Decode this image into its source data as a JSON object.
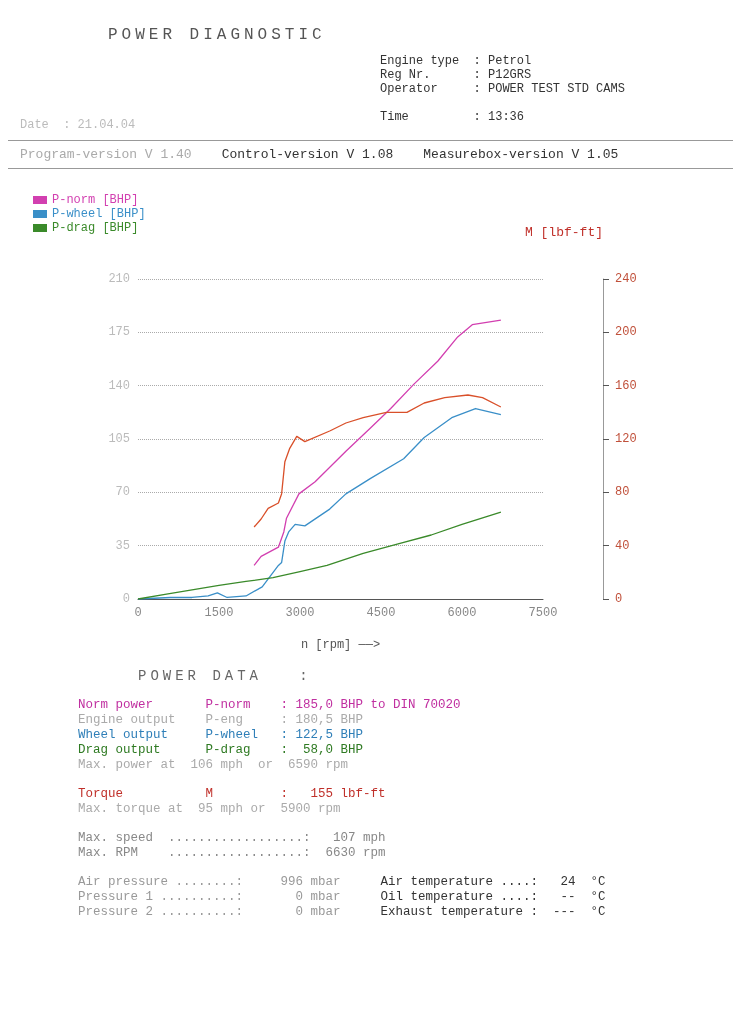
{
  "chart_data": {
    "type": "line",
    "title": "POWER DIAGNOSTIC",
    "xlabel": "n [rpm] ——>",
    "y2label": "M [lbf-ft]",
    "annotations": [
      "Engine type  : Petrol",
      "Reg Nr.      : P12GRS",
      "Operator     : POWER TEST STD CAMS",
      "Date  : 21.04.04",
      "Time         : 13:36",
      "Program-version V 1.40",
      "Control-version V 1.08",
      "Measurebox-version V 1.05",
      "POWER DATA   :",
      "Norm power       P-norm    : 185,0 BHP to DIN 70020",
      "Engine output    P-eng     : 180,5 BHP",
      "Wheel output     P-wheel   : 122,5 BHP",
      "Drag output      P-drag    :  58,0 BHP",
      "Max. power at  106 mph  or  6590 rpm",
      "Torque           M         :   155 lbf-ft",
      "Max. torque at  95 mph or  5900 rpm",
      "Max. speed  ..................:   107 mph",
      "Max. RPM    ..................:  6630 rpm",
      "Air pressure ........:     996 mbar",
      "Pressure 1 ..........:       0 mbar",
      "Pressure 2 ..........:       0 mbar",
      "Air temperature ....:   24  °C",
      "Oil temperature ....:   --  °C",
      "Exhaust temperature :  ---  °C"
    ],
    "xlim": [
      0,
      7500
    ],
    "xticks": [
      0,
      1500,
      3000,
      4500,
      6000,
      7500
    ],
    "ylim": [
      0,
      210
    ],
    "yticks": [
      0,
      35,
      70,
      105,
      140,
      175,
      210
    ],
    "y2lim": [
      0,
      240
    ],
    "y2ticks": [
      0,
      40,
      80,
      120,
      160,
      200,
      240
    ],
    "grid": "y",
    "legend": "top left",
    "line_style": "solid",
    "marker": "none",
    "series": [
      {
        "name": "P-norm [BHP]",
        "color": "#d23fb0",
        "x": [
          2150,
          2280,
          2600,
          2700,
          2750,
          2980,
          3280,
          3850,
          4300,
          4680,
          5110,
          5550,
          5920,
          6190,
          6720
        ],
        "values": [
          22,
          28,
          34,
          44,
          53,
          69,
          77,
          97,
          112,
          125,
          141,
          156,
          172,
          180,
          183
        ]
      },
      {
        "name": "P-wheel [BHP]",
        "color": "#3a8fc8",
        "x": [
          0,
          600,
          1000,
          1300,
          1470,
          1650,
          2000,
          2300,
          2600,
          2660,
          2720,
          2790,
          2910,
          3090,
          3550,
          3850,
          4300,
          4920,
          5300,
          5810,
          6250,
          6720
        ],
        "values": [
          0,
          1,
          1,
          2,
          4,
          1,
          2,
          8,
          22,
          24,
          38,
          44,
          49,
          48,
          59,
          69,
          79,
          92,
          106,
          119,
          125,
          121
        ]
      },
      {
        "name": "P-drag [BHP]",
        "color": "#3a8a2a",
        "x": [
          0,
          500,
          1000,
          1500,
          2000,
          2500,
          3000,
          3500,
          4170,
          4800,
          5430,
          6000,
          6720
        ],
        "values": [
          0,
          3,
          6,
          9,
          11.5,
          14,
          18,
          22,
          30,
          36,
          42,
          49,
          57
        ]
      },
      {
        "color": "#d9502a",
        "axis": "y2",
        "x": [
          2150,
          2280,
          2410,
          2600,
          2660,
          2720,
          2810,
          2940,
          3090,
          3550,
          3850,
          4170,
          4600,
          4980,
          5300,
          5680,
          6110,
          6380,
          6720
        ],
        "values": [
          54,
          60,
          68,
          72,
          79,
          103,
          113,
          122,
          118,
          126,
          132,
          136,
          140,
          140,
          147,
          151,
          153,
          151,
          144
        ]
      }
    ]
  }
}
